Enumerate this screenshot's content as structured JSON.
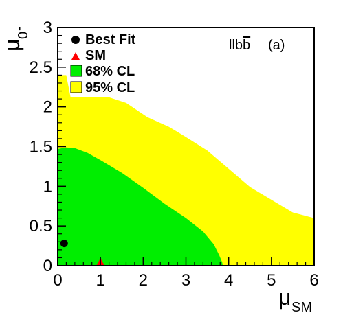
{
  "chart_data": {
    "type": "contour",
    "xlabel": "μ",
    "xlabel_sub": "SM",
    "ylabel": "μ",
    "ylabel_sub": "0",
    "ylabel_sup": "-",
    "xlim": [
      0,
      6
    ],
    "ylim": [
      0,
      3
    ],
    "x_ticks": [
      0,
      1,
      2,
      3,
      4,
      5,
      6
    ],
    "x_tick_labels": [
      "0",
      "1",
      "2",
      "3",
      "4",
      "5",
      "6"
    ],
    "y_ticks": [
      0,
      0.5,
      1,
      1.5,
      2,
      2.5,
      3
    ],
    "y_tick_labels": [
      "0",
      "0.5",
      "1",
      "1.5",
      "2",
      "2.5",
      "3"
    ],
    "grid": false,
    "legend_position": "top-left",
    "annotation_channel": "llb",
    "annotation_channel_bar": "b",
    "annotation_panel": "(a)",
    "legend": [
      {
        "label": "Best Fit",
        "symbol": "circle",
        "color": "#000000"
      },
      {
        "label": "SM",
        "symbol": "triangle",
        "color": "#ff0000"
      },
      {
        "label": "68% CL",
        "symbol": "box",
        "color": "#00ee00"
      },
      {
        "label": "95% CL",
        "symbol": "box",
        "color": "#ffff00"
      }
    ],
    "best_fit": {
      "x": 0.15,
      "y": 0.28
    },
    "sm_point": {
      "x": 1.0,
      "y": 0.0
    },
    "regions": [
      {
        "name": "95% CL",
        "color": "#ffff00",
        "boundary": [
          [
            0,
            0
          ],
          [
            0,
            2.4
          ],
          [
            0.2,
            2.4
          ],
          [
            0.3,
            2.12
          ],
          [
            1.2,
            2.12
          ],
          [
            1.6,
            2.05
          ],
          [
            2.1,
            1.87
          ],
          [
            2.6,
            1.75
          ],
          [
            3.0,
            1.62
          ],
          [
            3.5,
            1.45
          ],
          [
            4.0,
            1.22
          ],
          [
            4.5,
            0.99
          ],
          [
            5.0,
            0.83
          ],
          [
            5.5,
            0.67
          ],
          [
            6.0,
            0.6
          ],
          [
            6.0,
            0
          ]
        ]
      },
      {
        "name": "68% CL",
        "color": "#00ee00",
        "boundary": [
          [
            0,
            0
          ],
          [
            0,
            1.47
          ],
          [
            0.2,
            1.49
          ],
          [
            0.4,
            1.48
          ],
          [
            0.7,
            1.42
          ],
          [
            1.0,
            1.33
          ],
          [
            1.5,
            1.17
          ],
          [
            2.0,
            0.98
          ],
          [
            2.5,
            0.78
          ],
          [
            3.0,
            0.6
          ],
          [
            3.4,
            0.43
          ],
          [
            3.65,
            0.27
          ],
          [
            3.78,
            0.13
          ],
          [
            3.85,
            0.04
          ],
          [
            3.86,
            0
          ]
        ]
      }
    ]
  }
}
